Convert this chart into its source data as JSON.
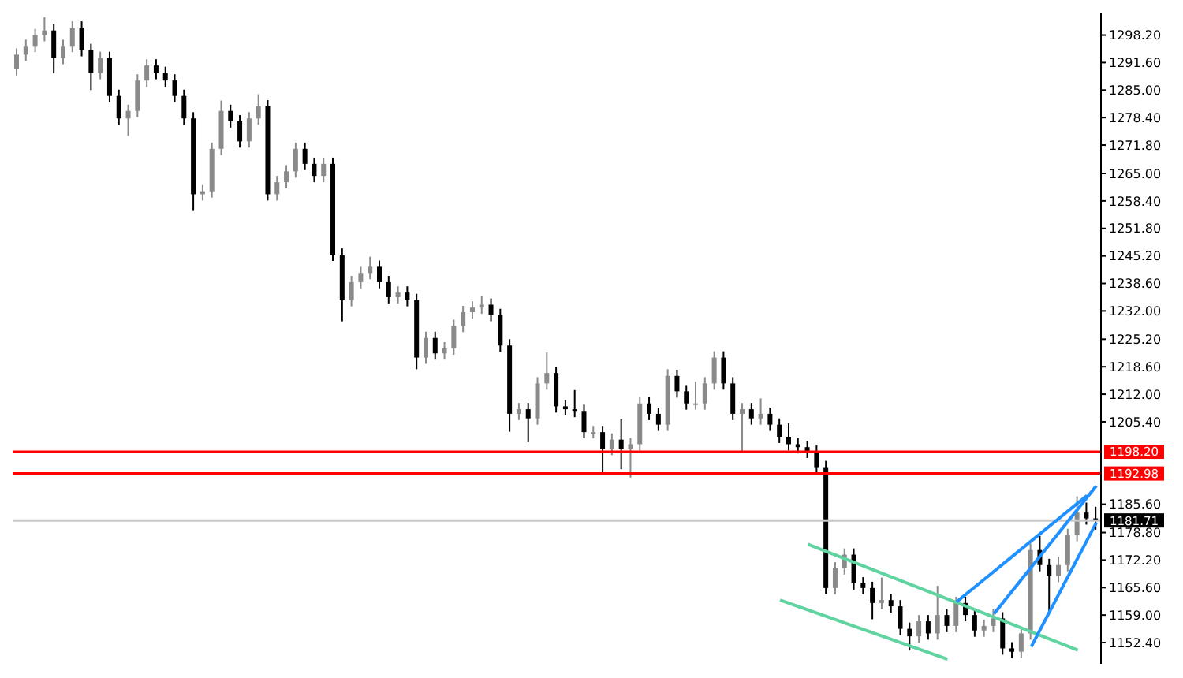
{
  "chart_data": {
    "type": "candlestick",
    "categories": [
      null,
      null,
      null,
      null,
      null,
      null,
      null,
      null,
      null,
      null,
      null,
      null,
      null,
      null,
      null,
      null,
      null,
      null,
      null,
      null,
      null,
      null,
      null,
      null,
      null,
      null,
      null,
      null,
      null,
      null,
      null,
      null,
      null,
      null,
      null,
      null,
      null,
      null,
      null,
      null,
      null,
      null,
      null,
      null,
      null,
      null,
      null,
      null,
      null,
      null,
      null,
      null,
      null,
      null,
      null,
      null,
      null,
      null,
      null,
      null,
      null,
      null,
      null,
      null,
      null,
      null,
      null,
      null,
      null,
      null,
      null,
      null,
      null,
      null,
      null,
      null,
      null,
      null,
      null,
      null,
      null,
      null,
      null,
      null,
      null,
      null,
      null,
      null,
      null,
      null,
      null,
      null,
      null,
      null,
      null,
      null,
      null,
      null,
      null,
      null,
      null,
      null,
      null,
      null,
      null,
      null,
      null,
      null,
      null,
      null,
      null,
      null,
      null,
      null,
      null,
      null,
      null
    ],
    "ohlc": [
      [
        1290.0,
        1295.0,
        1288.5,
        1293.5
      ],
      [
        1293.5,
        1297.1,
        1292.0,
        1295.6
      ],
      [
        1295.6,
        1299.7,
        1294.1,
        1298.2
      ],
      [
        1298.2,
        1302.5,
        1296.7,
        1299.3
      ],
      [
        1299.3,
        1300.8,
        1289.0,
        1292.7
      ],
      [
        1292.7,
        1297.1,
        1291.2,
        1295.6
      ],
      [
        1295.6,
        1301.5,
        1294.1,
        1300.0
      ],
      [
        1300.0,
        1301.5,
        1293.1,
        1294.6
      ],
      [
        1294.6,
        1296.1,
        1285.0,
        1289.1
      ],
      [
        1289.1,
        1294.2,
        1287.6,
        1292.7
      ],
      [
        1292.7,
        1294.2,
        1282.1,
        1283.6
      ],
      [
        1283.6,
        1285.1,
        1276.7,
        1278.2
      ],
      [
        1278.2,
        1281.5,
        1274.0,
        1280.0
      ],
      [
        1280.0,
        1288.8,
        1278.5,
        1287.3
      ],
      [
        1287.3,
        1292.4,
        1285.8,
        1290.9
      ],
      [
        1290.9,
        1292.4,
        1287.6,
        1289.1
      ],
      [
        1289.1,
        1290.6,
        1285.8,
        1287.3
      ],
      [
        1287.3,
        1288.8,
        1282.1,
        1283.6
      ],
      [
        1283.6,
        1285.1,
        1276.7,
        1278.2
      ],
      [
        1278.2,
        1279.7,
        1256.0,
        1260.0
      ],
      [
        1260.0,
        1262.2,
        1258.5,
        1260.7
      ],
      [
        1260.7,
        1272.4,
        1259.2,
        1270.9
      ],
      [
        1270.9,
        1282.5,
        1269.4,
        1280.0
      ],
      [
        1280.0,
        1281.5,
        1276.0,
        1277.5
      ],
      [
        1277.5,
        1279.0,
        1271.2,
        1272.7
      ],
      [
        1272.7,
        1279.7,
        1271.2,
        1278.2
      ],
      [
        1278.2,
        1284.0,
        1276.7,
        1281.1
      ],
      [
        1281.1,
        1282.6,
        1258.5,
        1260.0
      ],
      [
        1260.0,
        1264.4,
        1258.5,
        1262.9
      ],
      [
        1262.9,
        1267.0,
        1261.4,
        1265.5
      ],
      [
        1265.5,
        1272.4,
        1264.0,
        1270.9
      ],
      [
        1270.9,
        1272.4,
        1265.8,
        1267.3
      ],
      [
        1267.3,
        1268.8,
        1262.9,
        1264.4
      ],
      [
        1264.4,
        1268.8,
        1262.9,
        1267.3
      ],
      [
        1267.3,
        1268.8,
        1244.0,
        1245.5
      ],
      [
        1245.5,
        1247.0,
        1229.5,
        1234.6
      ],
      [
        1234.6,
        1240.4,
        1233.1,
        1238.9
      ],
      [
        1238.9,
        1242.6,
        1237.4,
        1241.1
      ],
      [
        1241.1,
        1245.0,
        1239.6,
        1242.6
      ],
      [
        1242.6,
        1244.1,
        1237.4,
        1238.9
      ],
      [
        1238.9,
        1240.4,
        1233.8,
        1235.3
      ],
      [
        1235.3,
        1237.9,
        1233.8,
        1236.4
      ],
      [
        1236.4,
        1237.9,
        1233.1,
        1234.6
      ],
      [
        1234.6,
        1236.1,
        1218.0,
        1220.8
      ],
      [
        1220.8,
        1227.0,
        1219.3,
        1225.5
      ],
      [
        1225.5,
        1227.0,
        1220.3,
        1221.8
      ],
      [
        1221.8,
        1224.5,
        1220.3,
        1223.0
      ],
      [
        1223.0,
        1229.9,
        1221.5,
        1228.4
      ],
      [
        1228.4,
        1233.2,
        1226.9,
        1231.7
      ],
      [
        1231.7,
        1234.3,
        1230.2,
        1232.8
      ],
      [
        1232.8,
        1235.5,
        1231.3,
        1233.5
      ],
      [
        1233.5,
        1235.0,
        1229.5,
        1231.0
      ],
      [
        1231.0,
        1232.5,
        1222.2,
        1223.7
      ],
      [
        1223.7,
        1225.2,
        1203.0,
        1207.3
      ],
      [
        1207.3,
        1209.9,
        1205.8,
        1208.4
      ],
      [
        1208.4,
        1209.9,
        1200.5,
        1206.2
      ],
      [
        1206.2,
        1216.1,
        1204.7,
        1214.6
      ],
      [
        1214.6,
        1222.0,
        1213.1,
        1217.1
      ],
      [
        1217.1,
        1218.6,
        1207.6,
        1209.1
      ],
      [
        1209.1,
        1210.6,
        1206.9,
        1208.4
      ],
      [
        1208.4,
        1213.0,
        1206.5,
        1208.0
      ],
      [
        1208.0,
        1209.5,
        1201.4,
        1202.9
      ],
      [
        1202.9,
        1204.4,
        1201.4,
        1202.9
      ],
      [
        1202.9,
        1204.4,
        1193.0,
        1198.9
      ],
      [
        1198.9,
        1202.6,
        1197.4,
        1201.1
      ],
      [
        1201.1,
        1206.0,
        1194.0,
        1198.9
      ],
      [
        1198.9,
        1201.5,
        1192.0,
        1200.0
      ],
      [
        1200.0,
        1211.3,
        1198.5,
        1209.8
      ],
      [
        1209.8,
        1211.3,
        1205.8,
        1207.3
      ],
      [
        1207.3,
        1208.8,
        1203.2,
        1204.7
      ],
      [
        1204.7,
        1218.0,
        1203.2,
        1216.4
      ],
      [
        1216.4,
        1217.9,
        1211.2,
        1212.7
      ],
      [
        1212.7,
        1214.2,
        1208.3,
        1209.8
      ],
      [
        1209.8,
        1215.0,
        1208.3,
        1209.8
      ],
      [
        1209.8,
        1216.1,
        1208.3,
        1214.6
      ],
      [
        1214.6,
        1222.3,
        1213.1,
        1220.8
      ],
      [
        1220.8,
        1222.3,
        1213.1,
        1214.6
      ],
      [
        1214.6,
        1216.1,
        1205.8,
        1207.3
      ],
      [
        1207.3,
        1209.9,
        1198.0,
        1208.4
      ],
      [
        1208.4,
        1209.9,
        1204.7,
        1206.2
      ],
      [
        1206.2,
        1211.0,
        1204.7,
        1207.3
      ],
      [
        1207.3,
        1208.8,
        1203.2,
        1204.7
      ],
      [
        1204.7,
        1206.2,
        1200.3,
        1201.8
      ],
      [
        1201.8,
        1205.0,
        1198.5,
        1200.0
      ],
      [
        1200.0,
        1201.5,
        1197.8,
        1199.3
      ],
      [
        1199.3,
        1200.8,
        1196.7,
        1198.2
      ],
      [
        1198.2,
        1199.7,
        1193.0,
        1194.5
      ],
      [
        1194.5,
        1196.0,
        1164.0,
        1165.5
      ],
      [
        1165.5,
        1171.7,
        1164.0,
        1170.2
      ],
      [
        1170.2,
        1175.0,
        1168.7,
        1173.5
      ],
      [
        1173.5,
        1175.0,
        1165.1,
        1166.6
      ],
      [
        1166.6,
        1168.1,
        1164.0,
        1165.5
      ],
      [
        1165.5,
        1167.0,
        1158.0,
        1161.9
      ],
      [
        1161.9,
        1168.0,
        1160.4,
        1162.6
      ],
      [
        1162.6,
        1164.1,
        1159.6,
        1161.1
      ],
      [
        1161.1,
        1162.6,
        1154.2,
        1155.7
      ],
      [
        1155.7,
        1157.2,
        1150.5,
        1153.9
      ],
      [
        1153.9,
        1159.0,
        1152.4,
        1157.5
      ],
      [
        1157.5,
        1159.0,
        1153.1,
        1154.6
      ],
      [
        1154.6,
        1166.0,
        1153.1,
        1159.0
      ],
      [
        1159.0,
        1160.5,
        1154.9,
        1156.4
      ],
      [
        1156.4,
        1163.4,
        1154.9,
        1161.9
      ],
      [
        1161.9,
        1163.4,
        1157.5,
        1159.0
      ],
      [
        1159.0,
        1160.5,
        1153.8,
        1155.3
      ],
      [
        1155.3,
        1157.9,
        1153.8,
        1156.4
      ],
      [
        1156.4,
        1160.5,
        1154.9,
        1158.2
      ],
      [
        1158.2,
        1159.7,
        1149.5,
        1151.0
      ],
      [
        1151.0,
        1152.5,
        1148.7,
        1150.2
      ],
      [
        1150.2,
        1156.1,
        1148.7,
        1154.6
      ],
      [
        1154.6,
        1176.1,
        1153.1,
        1174.6
      ],
      [
        1174.6,
        1178.0,
        1169.5,
        1171.0
      ],
      [
        1171.0,
        1172.5,
        1160.0,
        1168.4
      ],
      [
        1168.4,
        1173.0,
        1166.9,
        1171.0
      ],
      [
        1171.0,
        1179.7,
        1169.5,
        1178.2
      ],
      [
        1178.2,
        1187.5,
        1176.7,
        1183.6
      ],
      [
        1183.6,
        1186.0,
        1180.7,
        1182.2
      ],
      [
        1182.2,
        1185.0,
        1179.5,
        1181.71
      ]
    ],
    "ylim": [
      1147.3,
      1303.6
    ],
    "yticks": [
      {
        "value": 1298.2,
        "label": "1298.20"
      },
      {
        "value": 1291.6,
        "label": "1291.60"
      },
      {
        "value": 1285.0,
        "label": "1285.00"
      },
      {
        "value": 1278.4,
        "label": "1278.40"
      },
      {
        "value": 1271.8,
        "label": "1271.80"
      },
      {
        "value": 1265.0,
        "label": "1265.00"
      },
      {
        "value": 1258.4,
        "label": "1258.40"
      },
      {
        "value": 1251.8,
        "label": "1251.80"
      },
      {
        "value": 1245.2,
        "label": "1245.20"
      },
      {
        "value": 1238.6,
        "label": "1238.60"
      },
      {
        "value": 1232.0,
        "label": "1232.00"
      },
      {
        "value": 1225.2,
        "label": "1225.20"
      },
      {
        "value": 1218.6,
        "label": "1218.60"
      },
      {
        "value": 1212.0,
        "label": "1212.00"
      },
      {
        "value": 1205.4,
        "label": "1205.40"
      },
      {
        "value": 1185.6,
        "label": "1185.60"
      },
      {
        "value": 1178.8,
        "label": "1178.80"
      },
      {
        "value": 1172.2,
        "label": "1172.20"
      },
      {
        "value": 1165.6,
        "label": "1165.60"
      },
      {
        "value": 1159.0,
        "label": "1159.00"
      },
      {
        "value": 1152.4,
        "label": "1152.40"
      }
    ],
    "tick_labels": "y",
    "ref_lines": [
      {
        "axis": "y",
        "value": 1198.2,
        "label": "1198.20",
        "color": "#ff0000"
      },
      {
        "axis": "y",
        "value": 1192.98,
        "label": "1192.98",
        "color": "#ff0000"
      },
      {
        "axis": "y",
        "value": 1181.71,
        "label": "1181.71",
        "color": "#c8c8c8"
      }
    ],
    "series": [
      {
        "type": "line",
        "color": "#5fd3a0",
        "values": [
          null,
          null,
          null,
          null,
          null,
          null,
          null,
          null,
          null,
          null,
          null,
          null,
          null,
          null,
          null,
          null,
          null,
          null,
          null,
          null,
          null,
          null,
          null,
          null,
          null,
          null,
          null,
          null,
          null,
          null,
          null,
          null,
          null,
          null,
          null,
          null,
          null,
          null,
          null,
          null,
          null,
          null,
          null,
          null,
          null,
          null,
          null,
          null,
          null,
          null,
          null,
          null,
          null,
          null,
          null,
          null,
          null,
          null,
          null,
          null,
          null,
          null,
          null,
          null,
          null,
          null,
          null,
          null,
          null,
          null,
          null,
          null,
          null,
          null,
          null,
          null,
          null,
          null,
          null,
          null,
          null,
          null,
          null,
          null,
          null,
          1176.0,
          null,
          null,
          null,
          null,
          null,
          null,
          null,
          null,
          null,
          null,
          null,
          null,
          null,
          null,
          null,
          null,
          null,
          null,
          null,
          null,
          null,
          null,
          null,
          null,
          null,
          null,
          null,
          null,
          1150.6,
          null,
          null
        ]
      },
      {
        "type": "line",
        "color": "#5fd3a0",
        "values": [
          null,
          null,
          null,
          null,
          null,
          null,
          null,
          null,
          null,
          null,
          null,
          null,
          null,
          null,
          null,
          null,
          null,
          null,
          null,
          null,
          null,
          null,
          null,
          null,
          null,
          null,
          null,
          null,
          null,
          null,
          null,
          null,
          null,
          null,
          null,
          null,
          null,
          null,
          null,
          null,
          null,
          null,
          null,
          null,
          null,
          null,
          null,
          null,
          null,
          null,
          null,
          null,
          null,
          null,
          null,
          null,
          null,
          null,
          null,
          null,
          null,
          null,
          null,
          null,
          null,
          null,
          null,
          null,
          null,
          null,
          null,
          null,
          null,
          null,
          null,
          null,
          null,
          null,
          null,
          null,
          null,
          null,
          1162.6,
          null,
          null,
          null,
          null,
          null,
          null,
          null,
          null,
          null,
          null,
          null,
          null,
          null,
          null,
          null,
          null,
          null,
          1148.4,
          null,
          null,
          null,
          null,
          null,
          null,
          null,
          null,
          null,
          null,
          null,
          null,
          null,
          null,
          null,
          null
        ]
      },
      {
        "type": "line",
        "color": "#1e90ff",
        "values": [
          null,
          null,
          null,
          null,
          null,
          null,
          null,
          null,
          null,
          null,
          null,
          null,
          null,
          null,
          null,
          null,
          null,
          null,
          null,
          null,
          null,
          null,
          null,
          null,
          null,
          null,
          null,
          null,
          null,
          null,
          null,
          null,
          null,
          null,
          null,
          null,
          null,
          null,
          null,
          null,
          null,
          null,
          null,
          null,
          null,
          null,
          null,
          null,
          null,
          null,
          null,
          null,
          null,
          null,
          null,
          null,
          null,
          null,
          null,
          null,
          null,
          null,
          null,
          null,
          null,
          null,
          null,
          null,
          null,
          null,
          null,
          null,
          null,
          null,
          null,
          null,
          null,
          null,
          null,
          null,
          null,
          null,
          null,
          null,
          null,
          null,
          null,
          null,
          null,
          null,
          null,
          null,
          null,
          null,
          null,
          null,
          null,
          null,
          null,
          null,
          null,
          1162.2,
          null,
          null,
          null,
          null,
          null,
          null,
          null,
          null,
          null,
          null,
          null,
          null,
          null,
          1187.7,
          null
        ]
      },
      {
        "type": "line",
        "color": "#1e90ff",
        "values": [
          null,
          null,
          null,
          null,
          null,
          null,
          null,
          null,
          null,
          null,
          null,
          null,
          null,
          null,
          null,
          null,
          null,
          null,
          null,
          null,
          null,
          null,
          null,
          null,
          null,
          null,
          null,
          null,
          null,
          null,
          null,
          null,
          null,
          null,
          null,
          null,
          null,
          null,
          null,
          null,
          null,
          null,
          null,
          null,
          null,
          null,
          null,
          null,
          null,
          null,
          null,
          null,
          null,
          null,
          null,
          null,
          null,
          null,
          null,
          null,
          null,
          null,
          null,
          null,
          null,
          null,
          null,
          null,
          null,
          null,
          null,
          null,
          null,
          null,
          null,
          null,
          null,
          null,
          null,
          null,
          null,
          null,
          null,
          null,
          null,
          null,
          null,
          null,
          null,
          null,
          null,
          null,
          null,
          null,
          null,
          null,
          null,
          null,
          null,
          null,
          null,
          null,
          null,
          null,
          null,
          1159.3,
          null,
          null,
          null,
          null,
          null,
          null,
          null,
          null,
          null,
          null,
          1190.0
        ]
      },
      {
        "type": "line",
        "color": "#1e90ff",
        "values": [
          null,
          null,
          null,
          null,
          null,
          null,
          null,
          null,
          null,
          null,
          null,
          null,
          null,
          null,
          null,
          null,
          null,
          null,
          null,
          null,
          null,
          null,
          null,
          null,
          null,
          null,
          null,
          null,
          null,
          null,
          null,
          null,
          null,
          null,
          null,
          null,
          null,
          null,
          null,
          null,
          null,
          null,
          null,
          null,
          null,
          null,
          null,
          null,
          null,
          null,
          null,
          null,
          null,
          null,
          null,
          null,
          null,
          null,
          null,
          null,
          null,
          null,
          null,
          null,
          null,
          null,
          null,
          null,
          null,
          null,
          null,
          null,
          null,
          null,
          null,
          null,
          null,
          null,
          null,
          null,
          null,
          null,
          null,
          null,
          null,
          null,
          null,
          null,
          null,
          null,
          null,
          null,
          null,
          null,
          null,
          null,
          null,
          null,
          null,
          null,
          null,
          null,
          null,
          null,
          null,
          null,
          null,
          null,
          null,
          1151.4,
          null,
          null,
          null,
          null,
          null,
          null,
          1181.2
        ]
      }
    ]
  }
}
